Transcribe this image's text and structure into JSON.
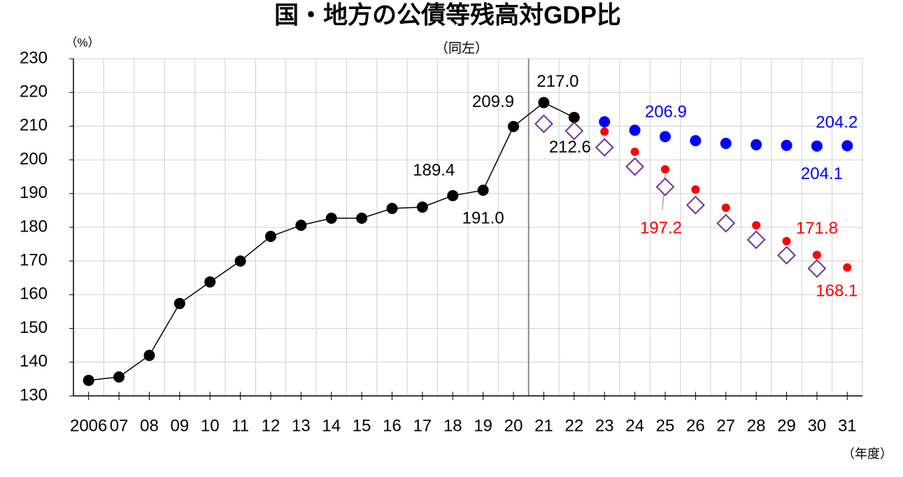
{
  "chart_data": {
    "type": "line",
    "title": "国・地方の公債等残高対GDP比",
    "ylabel": "（%）",
    "annotations": [
      "（同左）"
    ],
    "xlabel": "（年度）",
    "categories": [
      "2006",
      "07",
      "08",
      "09",
      "10",
      "11",
      "12",
      "13",
      "14",
      "15",
      "16",
      "17",
      "18",
      "19",
      "20",
      "21",
      "22",
      "23",
      "24",
      "25",
      "26",
      "27",
      "28",
      "29",
      "30",
      "31"
    ],
    "ylim": [
      130,
      230
    ],
    "yticks": [
      130,
      140,
      150,
      160,
      170,
      180,
      190,
      200,
      210,
      220,
      230
    ],
    "grid": true,
    "series": [
      {
        "color": "#000000",
        "marker": "circle",
        "line": true,
        "values": [
          134.6,
          135.6,
          142.0,
          157.4,
          163.8,
          170.0,
          177.3,
          180.6,
          182.7,
          182.7,
          185.6,
          186.0,
          189.4,
          191.0,
          209.9,
          217.0,
          212.6,
          null,
          null,
          null,
          null,
          null,
          null,
          null,
          null,
          null
        ],
        "value_labels": [
          null,
          null,
          null,
          null,
          null,
          null,
          null,
          null,
          null,
          null,
          null,
          null,
          "189.4",
          "191.0",
          "209.9",
          "217.0",
          "212.6",
          null,
          null,
          null,
          null,
          null,
          null,
          null,
          null,
          null
        ]
      },
      {
        "color": "#0000ff",
        "marker": "circle",
        "line": false,
        "values": [
          null,
          null,
          null,
          null,
          null,
          null,
          null,
          null,
          null,
          null,
          null,
          null,
          null,
          null,
          null,
          null,
          null,
          211.3,
          208.8,
          206.9,
          205.7,
          204.9,
          204.5,
          204.3,
          204.1,
          204.2
        ],
        "value_labels": [
          null,
          null,
          null,
          null,
          null,
          null,
          null,
          null,
          null,
          null,
          null,
          null,
          null,
          null,
          null,
          null,
          null,
          null,
          null,
          "206.9",
          null,
          null,
          null,
          null,
          "204.1",
          "204.2"
        ]
      },
      {
        "color": "#ff0000",
        "marker": "small-circle",
        "line": false,
        "values": [
          null,
          null,
          null,
          null,
          null,
          null,
          null,
          null,
          null,
          null,
          null,
          null,
          null,
          null,
          null,
          null,
          null,
          208.4,
          202.4,
          197.2,
          191.2,
          185.8,
          180.6,
          175.9,
          171.8,
          168.1
        ],
        "value_labels": [
          null,
          null,
          null,
          null,
          null,
          null,
          null,
          null,
          null,
          null,
          null,
          null,
          null,
          null,
          null,
          null,
          null,
          null,
          null,
          "197.2",
          null,
          null,
          null,
          null,
          "171.8",
          "168.1"
        ]
      },
      {
        "color": "#7030a0",
        "marker": "diamond",
        "line": false,
        "values": [
          null,
          null,
          null,
          null,
          null,
          null,
          null,
          null,
          null,
          null,
          null,
          null,
          null,
          null,
          null,
          210.7,
          208.6,
          203.7,
          198.0,
          192.0,
          186.6,
          181.2,
          176.3,
          171.7,
          167.8,
          null
        ]
      }
    ]
  }
}
